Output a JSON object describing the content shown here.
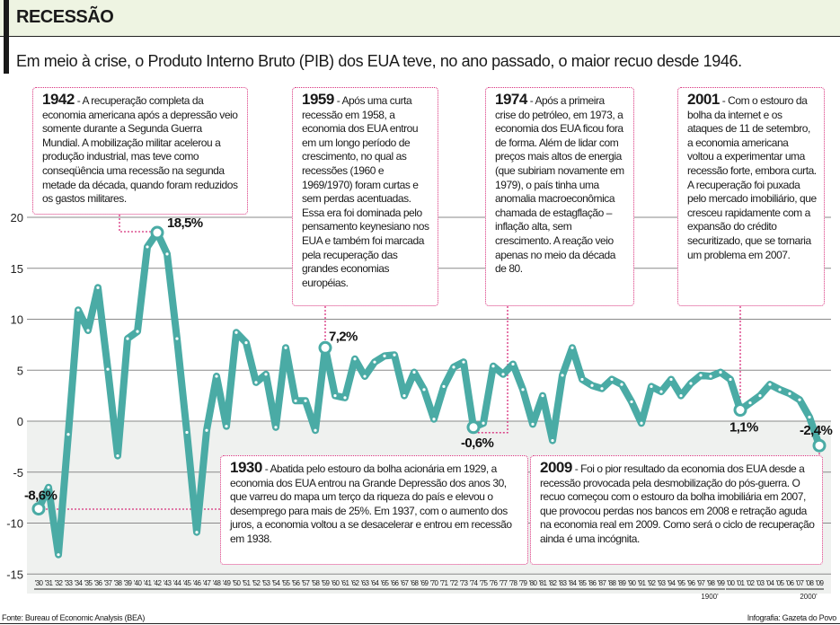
{
  "header": {
    "title": "RECESSÃO",
    "subtitle": "Em meio à crise, o Produto Interno Bruto (PIB) dos EUA teve, no ano passado, o maior recuo desde 1946."
  },
  "annotations": [
    {
      "year": "1942",
      "text": " - A recuperação completa da economia americana após a depressão veio somente durante a Segunda Guerra Mundial. A mobilização militar acelerou a produção industrial, mas teve como conseqüência uma recessão na segunda metade da década, quando foram reduzidos os gastos militares."
    },
    {
      "year": "1959",
      "text": " - Após uma curta recessão em 1958, a economia dos EUA entrou em um longo período de crescimento, no qual as recessões (1960 e 1969/1970) foram curtas e sem perdas acentuadas. Essa era foi dominada pelo pensamento keynesiano nos EUA e também foi marcada pela recuperação das grandes economias européias."
    },
    {
      "year": "1974",
      "text": " - Após a primeira crise do petróleo, em 1973, a economia dos EUA ficou fora de forma. Além de lidar com preços mais altos de energia (que subiriam novamente em 1979), o país tinha uma anomalia macroeconômica chamada de estagflação – inflação alta, sem crescimento. A reação veio apenas no meio da década de 80."
    },
    {
      "year": "2001",
      "text": " - Com o estouro da bolha da internet e os ataques de 11 de setembro, a economia americana voltou a experimentar uma recessão forte, embora curta. A recuperação foi puxada pelo mercado imobiliário, que cresceu rapidamente com a expansão do crédito securitizado, que se tornaria um problema em 2007."
    },
    {
      "year": "1930",
      "text": " - Abatida pelo estouro da bolha acionária em 1929, a economia dos EUA entrou na Grande Depressão dos anos 30, que varreu do mapa um terço da riqueza do país e elevou o desemprego para mais de 25%. Em 1937, com o aumento dos juros, a economia voltou a se desacelerar e entrou em recessão em 1938."
    },
    {
      "year": "2009",
      "text": " - Foi o pior resultado da economia dos EUA desde a recessão provocada pela desmobilização do pós-guerra. O recuo começou com o estouro da bolha imobiliária em 2007, que provocou perdas nos bancos em 2008 e retração aguda na economia real em 2009. Como será o ciclo de recuperação ainda é uma incógnita."
    }
  ],
  "footer": {
    "source": "Fonte: Bureau of Economic Analysis (BEA)",
    "credit": "Infografia: Gazeta do Povo"
  },
  "chart_data": {
    "type": "line",
    "title": "",
    "xlabel": "",
    "ylabel": "",
    "ylim": [
      -15,
      20
    ],
    "yticks": [
      "20",
      "15",
      "10",
      "5",
      "0",
      "-5",
      "-10",
      "-15"
    ],
    "grid": true,
    "line_color": "#4aaba5",
    "annotation_color": "#d8307c",
    "categories": [
      "'30",
      "'31",
      "'32",
      "'33",
      "'34",
      "'35",
      "'36",
      "'37",
      "'38",
      "'39",
      "'40",
      "'41",
      "'42",
      "'43",
      "'44",
      "'45",
      "'46",
      "'47",
      "'48",
      "'49",
      "'50",
      "'51",
      "'52",
      "'53",
      "'54",
      "'55",
      "'56",
      "'57",
      "'58",
      "'59",
      "'60",
      "'61",
      "'62",
      "'63",
      "'64",
      "'65",
      "'66",
      "'67",
      "'68",
      "'69",
      "'70",
      "'71",
      "'72",
      "'73",
      "'74",
      "'75",
      "'76",
      "'77",
      "'78",
      "'79",
      "'80",
      "'81",
      "'82",
      "'83",
      "'84",
      "'85",
      "'86",
      "'87",
      "'88",
      "'89",
      "'90",
      "'91",
      "'92",
      "'93",
      "'94",
      "'95",
      "'96",
      "'97",
      "'98",
      "'99",
      "'00",
      "'01",
      "'02",
      "'03",
      "'04",
      "'05",
      "'06",
      "'07",
      "'08",
      "'09"
    ],
    "values": [
      -8.6,
      -6.5,
      -13.1,
      -1.3,
      10.9,
      8.9,
      13.1,
      5.1,
      -3.4,
      8.1,
      8.8,
      17.1,
      18.5,
      16.4,
      8.1,
      -1.1,
      -10.9,
      -0.9,
      4.4,
      -0.5,
      8.7,
      7.7,
      3.8,
      4.6,
      -0.6,
      7.2,
      2.0,
      2.0,
      -0.9,
      7.2,
      2.5,
      2.3,
      6.1,
      4.4,
      5.8,
      6.4,
      6.5,
      2.5,
      4.8,
      3.1,
      0.2,
      3.4,
      5.3,
      5.8,
      -0.6,
      -0.2,
      5.4,
      4.6,
      5.6,
      3.1,
      -0.3,
      2.5,
      -1.9,
      4.5,
      7.2,
      4.1,
      3.5,
      3.2,
      4.1,
      3.6,
      1.9,
      -0.2,
      3.4,
      2.9,
      4.1,
      2.5,
      3.7,
      4.5,
      4.4,
      4.8,
      4.1,
      1.1,
      1.8,
      2.5,
      3.6,
      3.1,
      2.7,
      2.1,
      0.4,
      -2.4
    ],
    "century_labels": [
      {
        "label": "1900'",
        "from": 0,
        "to": 69
      },
      {
        "label": "2000'",
        "from": 70,
        "to": 79
      }
    ],
    "point_labels": [
      {
        "index": 0,
        "label": "-8,6%"
      },
      {
        "index": 12,
        "label": "18,5%"
      },
      {
        "index": 29,
        "label": "7,2%"
      },
      {
        "index": 44,
        "label": "-0,6%"
      },
      {
        "index": 71,
        "label": "1,1%"
      },
      {
        "index": 79,
        "label": "-2,4%"
      }
    ]
  }
}
